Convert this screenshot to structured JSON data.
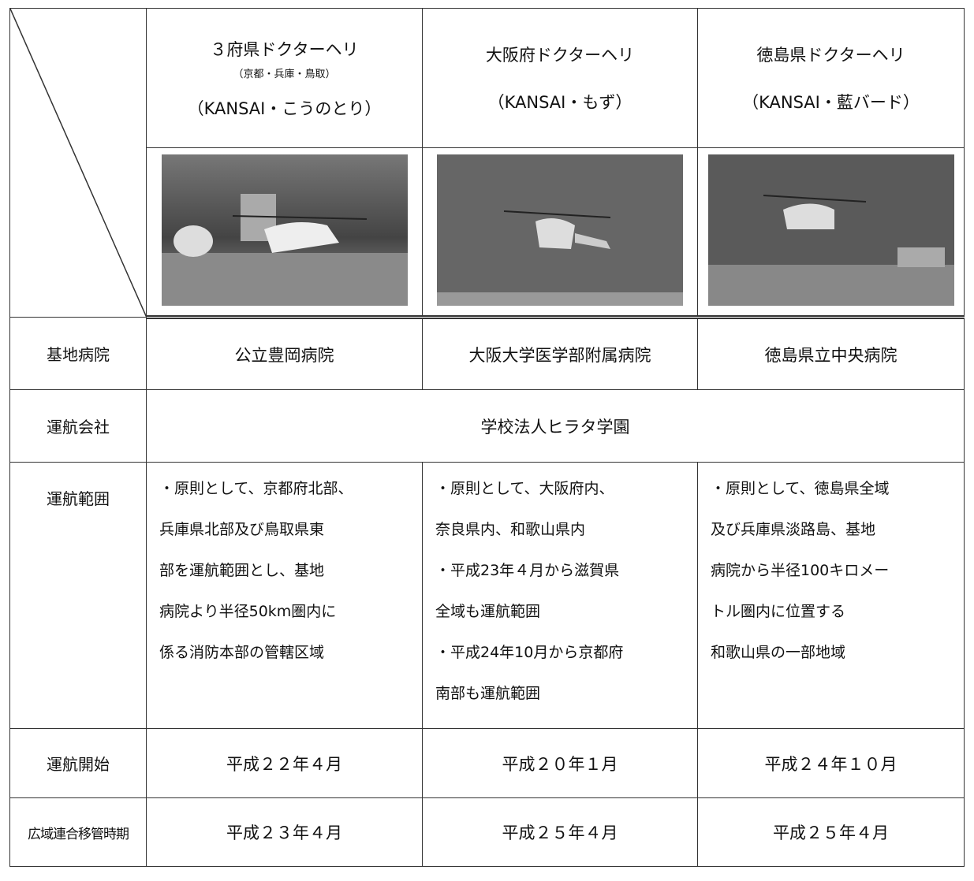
{
  "header": {
    "columns": [
      {
        "title": "３府県ドクターヘリ",
        "region": "（京都・兵庫・鳥取）",
        "nickname": "（KANSAI・こうのとり）"
      },
      {
        "title": "大阪府ドクターヘリ",
        "nickname": "（KANSAI・もず）"
      },
      {
        "title": "徳島県ドクターヘリ",
        "nickname": "（KANSAI・藍バード）"
      }
    ]
  },
  "rows": [
    {
      "label": "基地病院",
      "cells": [
        "公立豊岡病院",
        "大阪大学医学部附属病院",
        "徳島県立中央病院"
      ]
    },
    {
      "label": "運航会社",
      "cells": [
        "学校法人ヒラタ学園"
      ]
    },
    {
      "label": "運航範囲",
      "cells": [
        [
          "・原則として、京都府北部、",
          "兵庫県北部及び鳥取県東",
          "部を運航範囲とし、基地",
          "病院より半径50km圏内に",
          "係る消防本部の管轄区域"
        ],
        [
          "・原則として、大阪府内、",
          "奈良県内、和歌山県内",
          "・平成23年４月から滋賀県",
          "全域も運航範囲",
          "・平成24年10月から京都府",
          "南部も運航範囲"
        ],
        [
          "・原則として、徳島県全域",
          "及び兵庫県淡路島、基地",
          "病院から半径100キロメー",
          "トル圏内に位置する",
          "和歌山県の一部地域"
        ]
      ]
    },
    {
      "label": "運航開始",
      "cells": [
        "平成２２年４月",
        "平成２０年１月",
        "平成２４年１０月"
      ]
    },
    {
      "label": "広域連合移管時期",
      "cells": [
        "平成２３年４月",
        "平成２５年４月",
        "平成２５年４月"
      ]
    }
  ]
}
